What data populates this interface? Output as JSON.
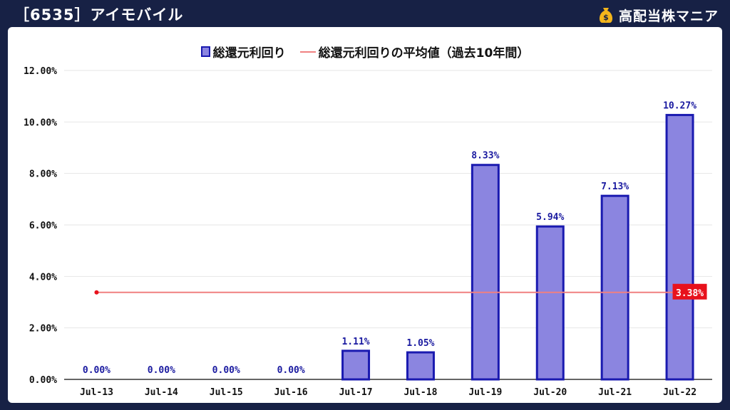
{
  "header": {
    "title": "［6535］アイモバイル",
    "brand_name": "高配当株マニア",
    "brand_icon": "money-bag-icon"
  },
  "colors": {
    "background": "#172145",
    "bar_fill": "#8b85e0",
    "bar_stroke": "#1a1ab0",
    "average_line": "#f08080",
    "average_label_bg": "#e8121c",
    "data_label": "#1a1aa0"
  },
  "chart_data": {
    "type": "bar",
    "title": "",
    "xlabel": "",
    "ylabel": "",
    "categories": [
      "Jul-13",
      "Jul-14",
      "Jul-15",
      "Jul-16",
      "Jul-17",
      "Jul-18",
      "Jul-19",
      "Jul-20",
      "Jul-21",
      "Jul-22"
    ],
    "series": [
      {
        "name": "総還元利回り",
        "values": [
          0.0,
          0.0,
          0.0,
          0.0,
          1.11,
          1.05,
          8.33,
          5.94,
          7.13,
          10.27
        ],
        "labels": [
          "0.00%",
          "0.00%",
          "0.00%",
          "0.00%",
          "1.11%",
          "1.05%",
          "8.33%",
          "5.94%",
          "7.13%",
          "10.27%"
        ]
      },
      {
        "name": "総還元利回りの平均値（過去10年間）",
        "type": "line",
        "value": 3.38,
        "label": "3.38%"
      }
    ],
    "ylim": [
      0,
      12
    ],
    "yticks": [
      "0.00%",
      "2.00%",
      "4.00%",
      "6.00%",
      "8.00%",
      "10.00%",
      "12.00%"
    ],
    "grid": true,
    "legend_position": "top-center"
  }
}
